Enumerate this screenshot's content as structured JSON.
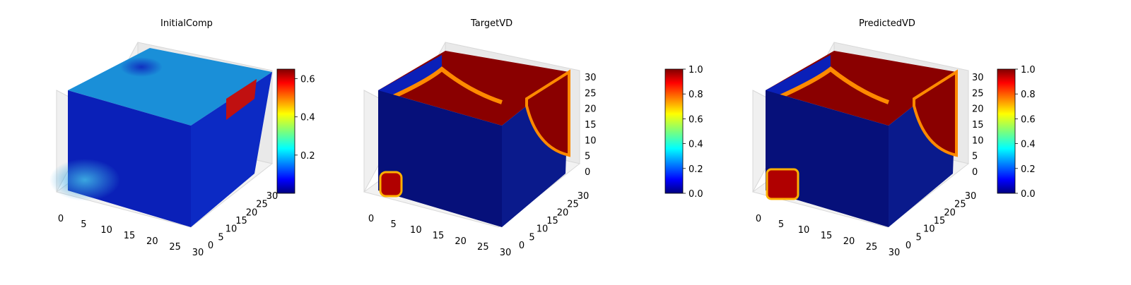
{
  "chart_data": [
    {
      "type": "heatmap",
      "title": "InitialComp",
      "axis_ticks": {
        "x": [
          "0",
          "5",
          "10",
          "15",
          "20",
          "25",
          "30"
        ],
        "y": [
          "0",
          "5",
          "10",
          "15",
          "20",
          "25",
          "30"
        ],
        "z": []
      },
      "colorbar": {
        "colormap": "jet",
        "range": [
          0.0,
          0.65
        ],
        "ticks": [
          0.2,
          0.4,
          0.6
        ],
        "tick_labels": [
          "0.2",
          "0.4",
          "0.6"
        ]
      }
    },
    {
      "type": "heatmap",
      "title": "TargetVD",
      "axis_ticks": {
        "x": [
          "0",
          "5",
          "10",
          "15",
          "20",
          "25",
          "30"
        ],
        "y": [
          "0",
          "5",
          "10",
          "15",
          "20",
          "25",
          "30"
        ],
        "z": [
          "0",
          "5",
          "10",
          "15",
          "20",
          "25",
          "30"
        ]
      },
      "colorbar": {
        "colormap": "jet",
        "range": [
          0.0,
          1.0
        ],
        "ticks": [
          0.0,
          0.2,
          0.4,
          0.6,
          0.8,
          1.0
        ],
        "tick_labels": [
          "0.0",
          "0.2",
          "0.4",
          "0.6",
          "0.8",
          "1.0"
        ]
      }
    },
    {
      "type": "heatmap",
      "title": "PredictedVD",
      "axis_ticks": {
        "x": [
          "0",
          "5",
          "10",
          "15",
          "20",
          "25",
          "30"
        ],
        "y": [
          "0",
          "5",
          "10",
          "15",
          "20",
          "25",
          "30"
        ],
        "z": [
          "0",
          "5",
          "10",
          "15",
          "20",
          "25",
          "30"
        ]
      },
      "colorbar": {
        "colormap": "jet",
        "range": [
          0.0,
          1.0
        ],
        "ticks": [
          0.0,
          0.2,
          0.4,
          0.6,
          0.8,
          1.0
        ],
        "tick_labels": [
          "0.0",
          "0.2",
          "0.4",
          "0.6",
          "0.8",
          "1.0"
        ]
      }
    }
  ]
}
